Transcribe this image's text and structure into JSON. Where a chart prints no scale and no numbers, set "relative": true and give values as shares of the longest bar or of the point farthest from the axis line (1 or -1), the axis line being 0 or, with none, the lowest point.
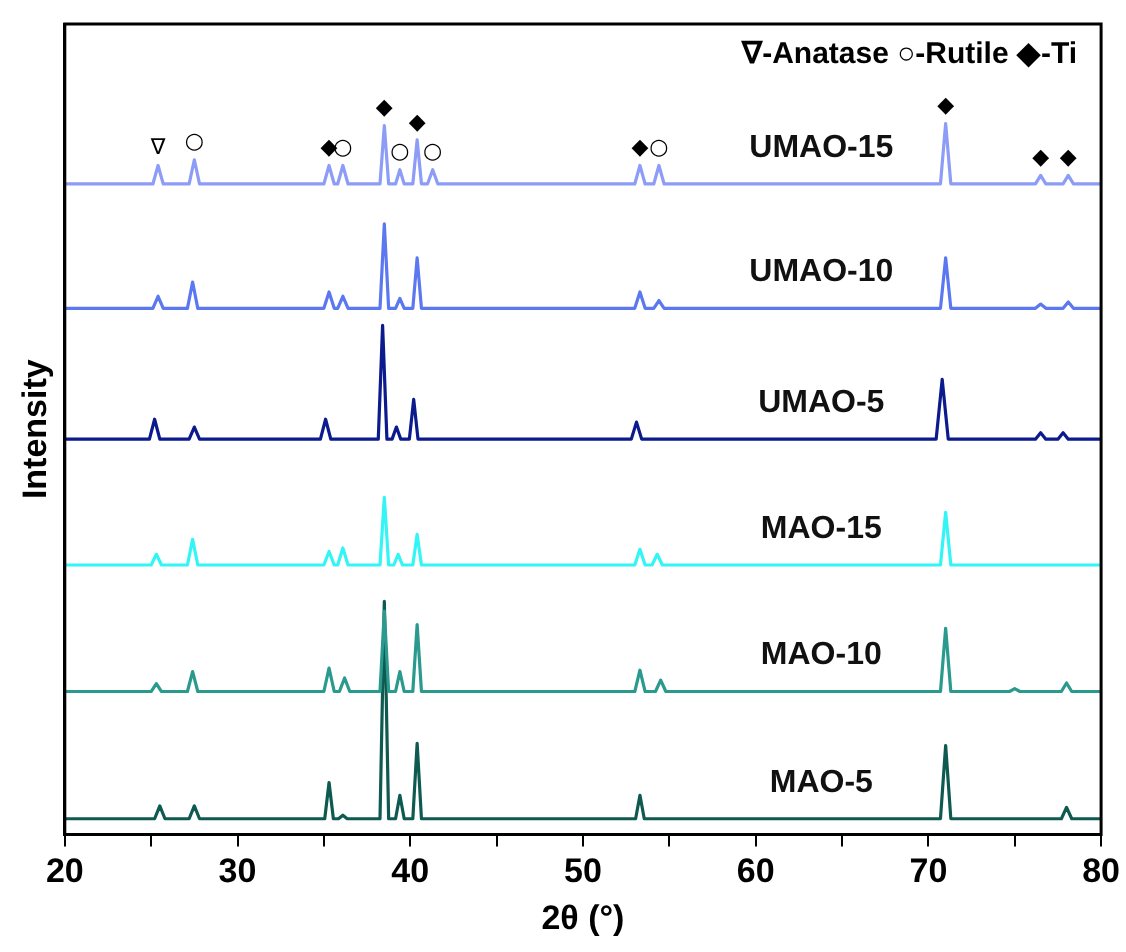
{
  "chart_data": {
    "type": "line",
    "relative": true,
    "xlabel": "2θ (°)",
    "ylabel": "Intensity",
    "xlim": [
      20,
      80
    ],
    "xticks": [
      20,
      {
        "value": 25,
        "label": null
      },
      30,
      {
        "value": 35,
        "label": null
      },
      40,
      {
        "value": 45,
        "label": null
      },
      50,
      {
        "value": 55,
        "label": null
      },
      60,
      {
        "value": 65,
        "label": null
      },
      70,
      {
        "value": 75,
        "label": null
      },
      80
    ],
    "tick_labels": "x",
    "legend": false,
    "grid": false,
    "marker": "none",
    "line_style": "solid",
    "series": [
      {
        "name": "UMAO-15",
        "color": "#8c9cf7",
        "x": [
          20,
          25.1,
          25.4,
          25.7,
          27.2,
          27.5,
          27.8,
          35.0,
          35.3,
          35.6,
          35.8,
          36.1,
          36.4,
          38.25,
          38.5,
          38.75,
          39.15,
          39.4,
          39.65,
          40.15,
          40.4,
          40.65,
          41.0,
          41.3,
          41.6,
          53.0,
          53.3,
          53.6,
          54.1,
          54.4,
          54.7,
          70.7,
          71.0,
          71.3,
          76.2,
          76.5,
          76.8,
          77.8,
          78.1,
          78.4,
          80
        ],
        "values": [
          0.915,
          0.915,
          0.941,
          0.915,
          0.915,
          0.949,
          0.915,
          0.915,
          0.941,
          0.915,
          0.915,
          0.941,
          0.915,
          0.915,
          0.997,
          0.915,
          0.915,
          0.935,
          0.915,
          0.915,
          0.977,
          0.915,
          0.915,
          0.935,
          0.915,
          0.915,
          0.941,
          0.915,
          0.915,
          0.941,
          0.915,
          0.915,
          1,
          0.915,
          0.915,
          0.927,
          0.915,
          0.915,
          0.927,
          0.915,
          0.915
        ]
      },
      {
        "name": "UMAO-10",
        "color": "#5b78f0",
        "x": [
          20,
          25.1,
          25.4,
          25.7,
          27.1,
          27.4,
          27.7,
          35.0,
          35.3,
          35.6,
          35.8,
          36.1,
          36.4,
          38.25,
          38.5,
          38.75,
          39.15,
          39.4,
          39.65,
          40.15,
          40.4,
          40.65,
          53.0,
          53.3,
          53.6,
          54.1,
          54.4,
          54.7,
          70.7,
          71.0,
          71.3,
          76.2,
          76.5,
          76.8,
          77.8,
          78.1,
          78.4,
          80
        ],
        "values": [
          0.74,
          0.74,
          0.757,
          0.74,
          0.74,
          0.777,
          0.74,
          0.74,
          0.763,
          0.74,
          0.74,
          0.757,
          0.74,
          0.74,
          0.859,
          0.74,
          0.74,
          0.754,
          0.74,
          0.74,
          0.811,
          0.74,
          0.74,
          0.763,
          0.74,
          0.74,
          0.751,
          0.74,
          0.74,
          0.811,
          0.74,
          0.74,
          0.746,
          0.74,
          0.74,
          0.749,
          0.74,
          0.74
        ]
      },
      {
        "name": "UMAO-5",
        "color": "#0b1a8c",
        "x": [
          20,
          24.9,
          25.2,
          25.5,
          27.2,
          27.5,
          27.8,
          34.8,
          35.1,
          35.4,
          38.15,
          38.4,
          38.65,
          38.95,
          39.2,
          39.45,
          39.95,
          40.2,
          40.45,
          52.8,
          53.1,
          53.4,
          70.45,
          70.8,
          71.15,
          76.2,
          76.5,
          76.8,
          77.5,
          77.8,
          78.1,
          80
        ],
        "values": [
          0.556,
          0.556,
          0.584,
          0.556,
          0.556,
          0.573,
          0.556,
          0.556,
          0.584,
          0.556,
          0.556,
          0.716,
          0.556,
          0.556,
          0.573,
          0.556,
          0.556,
          0.612,
          0.556,
          0.556,
          0.58,
          0.556,
          0.556,
          0.64,
          0.556,
          0.556,
          0.565,
          0.556,
          0.556,
          0.565,
          0.556,
          0.556
        ]
      },
      {
        "name": "MAO-15",
        "color": "#33f5f5",
        "x": [
          20,
          25.0,
          25.3,
          25.6,
          27.1,
          27.4,
          27.7,
          35.0,
          35.3,
          35.6,
          35.8,
          36.1,
          36.4,
          38.25,
          38.5,
          38.75,
          39.05,
          39.3,
          39.55,
          40.15,
          40.4,
          40.65,
          53.0,
          53.3,
          53.6,
          54.0,
          54.3,
          54.6,
          70.7,
          71.0,
          71.3,
          80
        ],
        "values": [
          0.379,
          0.379,
          0.394,
          0.379,
          0.379,
          0.415,
          0.379,
          0.379,
          0.398,
          0.379,
          0.379,
          0.403,
          0.379,
          0.379,
          0.474,
          0.379,
          0.379,
          0.394,
          0.379,
          0.379,
          0.422,
          0.379,
          0.379,
          0.401,
          0.379,
          0.379,
          0.394,
          0.379,
          0.379,
          0.453,
          0.379,
          0.379
        ]
      },
      {
        "name": "MAO-10",
        "color": "#2a9a8e",
        "x": [
          20,
          25.0,
          25.3,
          25.6,
          27.1,
          27.4,
          27.7,
          35.0,
          35.3,
          35.6,
          35.9,
          36.2,
          36.5,
          38.25,
          38.5,
          38.75,
          39.15,
          39.4,
          39.65,
          40.15,
          40.4,
          40.65,
          53.0,
          53.3,
          53.6,
          54.2,
          54.5,
          54.8,
          70.7,
          71.0,
          71.3,
          74.7,
          75.0,
          75.3,
          77.7,
          78.0,
          78.3,
          80
        ],
        "values": [
          0.201,
          0.201,
          0.212,
          0.201,
          0.201,
          0.229,
          0.201,
          0.201,
          0.234,
          0.201,
          0.201,
          0.22,
          0.201,
          0.201,
          0.314,
          0.201,
          0.201,
          0.229,
          0.201,
          0.201,
          0.295,
          0.201,
          0.201,
          0.231,
          0.201,
          0.201,
          0.217,
          0.201,
          0.201,
          0.29,
          0.201,
          0.201,
          0.205,
          0.201,
          0.201,
          0.213,
          0.201,
          0.201
        ]
      },
      {
        "name": "MAO-5",
        "color": "#0f5a50",
        "x": [
          20,
          25.2,
          25.5,
          25.8,
          27.2,
          27.5,
          27.8,
          35.05,
          35.3,
          35.55,
          35.85,
          36.1,
          36.35,
          38.25,
          38.5,
          38.75,
          39.15,
          39.4,
          39.65,
          40.15,
          40.4,
          40.65,
          53.05,
          53.3,
          53.55,
          70.7,
          71.0,
          71.3,
          77.7,
          78.0,
          78.3,
          80
        ],
        "values": [
          0.022,
          0.022,
          0.04,
          0.022,
          0.022,
          0.04,
          0.022,
          0.022,
          0.073,
          0.022,
          0.022,
          0.027,
          0.022,
          0.022,
          0.328,
          0.022,
          0.022,
          0.055,
          0.022,
          0.022,
          0.128,
          0.022,
          0.022,
          0.055,
          0.022,
          0.022,
          0.125,
          0.022,
          0.022,
          0.038,
          0.022,
          0.022
        ]
      }
    ],
    "annotations": [
      "∇-Anatase ○-Rutile ◆-Ti",
      {
        "text": "∇",
        "x": 25.4,
        "y": 0.941
      },
      {
        "text": "○",
        "x": 27.5,
        "y": 0.949
      },
      {
        "text": "◆",
        "x": 35.3,
        "y": 0.941
      },
      {
        "text": "○",
        "x": 36.1,
        "y": 0.941
      },
      {
        "text": "◆",
        "x": 38.5,
        "y": 0.997
      },
      {
        "text": "○",
        "x": 39.4,
        "y": 0.935
      },
      {
        "text": "◆",
        "x": 40.4,
        "y": 0.977
      },
      {
        "text": "○",
        "x": 41.3,
        "y": 0.935
      },
      {
        "text": "◆",
        "x": 53.3,
        "y": 0.941
      },
      {
        "text": "○",
        "x": 54.4,
        "y": 0.941
      },
      {
        "text": "◆",
        "x": 71.0,
        "y": 1
      },
      {
        "text": "◆",
        "x": 76.5,
        "y": 0.927
      },
      {
        "text": "◆",
        "x": 78.1,
        "y": 0.927
      }
    ]
  }
}
